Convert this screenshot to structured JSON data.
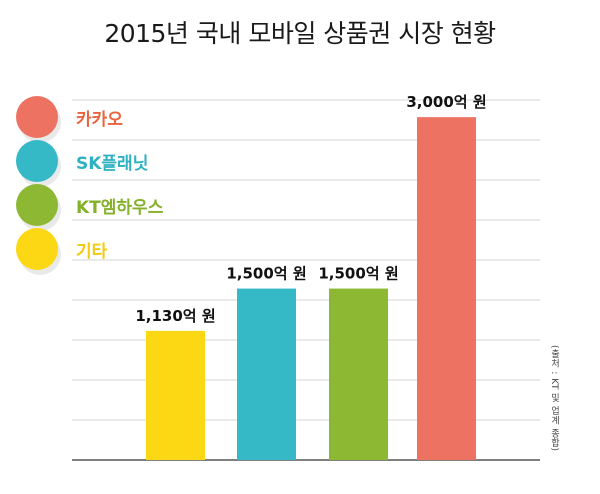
{
  "title": "2015년 국내 모바일 상품권 시장 현황",
  "source": "(출처 : KT 및 업계 종합)",
  "legend": [
    {
      "label": "카카오",
      "color": "#ee7262",
      "text_color": "#e8643f"
    },
    {
      "label": "SK플래닛",
      "color": "#35b9c7",
      "text_color": "#2eb1c0"
    },
    {
      "label": "KT엠하우스",
      "color": "#8db834",
      "text_color": "#84b02a"
    },
    {
      "label": "기타",
      "color": "#fcd714",
      "text_color": "#f4cb10"
    }
  ],
  "chart_data": {
    "type": "bar",
    "title": "2015년 국내 모바일 상품권 시장 현황",
    "categories": [
      "기타",
      "KT엠하우스",
      "SK플래닛",
      "카카오"
    ],
    "order": [
      "기타",
      "SK플래닛",
      "KT엠하우스",
      "카카오"
    ],
    "values": [
      1130,
      1500,
      1500,
      3000
    ],
    "value_labels": [
      "1,130억 원",
      "1,500억 원",
      "1,500억 원",
      "3,000억 원"
    ],
    "colors": [
      "#fcd714",
      "#35b9c7",
      "#8db834",
      "#ee7262"
    ],
    "unit": "억 원",
    "ylim": [
      0,
      3500
    ],
    "grid": true,
    "xlabel": "",
    "ylabel": ""
  }
}
